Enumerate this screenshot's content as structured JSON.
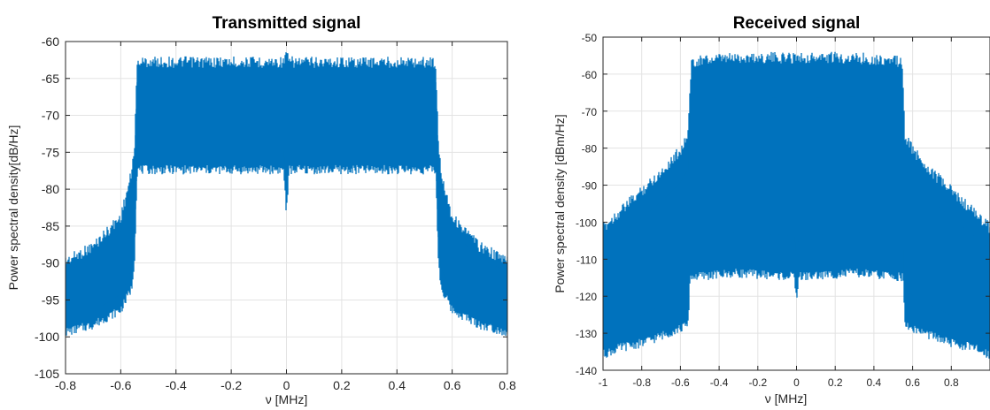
{
  "figure": {
    "panels": [
      {
        "id": "transmitted"
      },
      {
        "id": "received"
      }
    ]
  },
  "chart_data": [
    {
      "type": "area",
      "title": "Transmitted signal",
      "xlabel": "ν [MHz]",
      "ylabel": "Power spectral density[dB/Hz]",
      "xlim": [
        -0.8,
        0.8
      ],
      "ylim": [
        -105,
        -60
      ],
      "xticks": [
        -0.8,
        -0.6,
        -0.4,
        -0.2,
        0,
        0.2,
        0.4,
        0.6,
        0.8
      ],
      "xtick_labels": [
        "-0.8",
        "-0.6",
        "-0.4",
        "-0.2",
        "0",
        "0.2",
        "0.4",
        "0.6",
        "0.8"
      ],
      "yticks": [
        -105,
        -100,
        -95,
        -90,
        -85,
        -80,
        -75,
        -70,
        -65,
        -60
      ],
      "ytick_labels": [
        "-105",
        "-100",
        "-95",
        "-90",
        "-85",
        "-80",
        "-75",
        "-70",
        "-65",
        "-60"
      ],
      "grid": true,
      "color": "#0072BD",
      "series": [
        {
          "x": [
            -0.8,
            -0.7,
            -0.6,
            -0.56,
            -0.55,
            -0.54,
            -0.4,
            -0.2,
            -0.01,
            0,
            0.01,
            0.2,
            0.4,
            0.54,
            0.55,
            0.56,
            0.6,
            0.7,
            0.8
          ],
          "upper": [
            -89,
            -87,
            -83,
            -77,
            -73,
            -62,
            -62,
            -62,
            -62,
            -61,
            -62,
            -62,
            -62,
            -62,
            -73,
            -77,
            -83,
            -87,
            -89
          ],
          "lower": [
            -100,
            -99,
            -97,
            -94,
            -90,
            -78,
            -78,
            -78,
            -78,
            -84,
            -78,
            -78,
            -78,
            -78,
            -90,
            -94,
            -97,
            -99,
            -100
          ]
        }
      ]
    },
    {
      "type": "area",
      "title": "Received signal",
      "xlabel": "ν [MHz]",
      "ylabel": "Power spectral density [dBm/Hz]",
      "xlim": [
        -1,
        1
      ],
      "ylim": [
        -140,
        -50
      ],
      "xticks": [
        -1,
        -0.8,
        -0.6,
        -0.4,
        -0.2,
        0,
        0.2,
        0.4,
        0.6,
        0.8
      ],
      "xtick_labels": [
        "-1",
        "-0.8",
        "-0.6",
        "-0.4",
        "-0.2",
        "0",
        "0.2",
        "0.4",
        "0.6",
        "0.8"
      ],
      "yticks": [
        -140,
        -130,
        -120,
        -110,
        -100,
        -90,
        -80,
        -70,
        -60,
        -50
      ],
      "ytick_labels": [
        "-140",
        "-130",
        "-120",
        "-110",
        "-100",
        "-90",
        "-80",
        "-70",
        "-60",
        "-50"
      ],
      "grid": true,
      "color": "#0072BD",
      "series": [
        {
          "x": [
            -1,
            -0.9,
            -0.8,
            -0.7,
            -0.6,
            -0.56,
            -0.55,
            -0.54,
            -0.3,
            -0.01,
            0,
            0.01,
            0.3,
            0.54,
            0.55,
            0.56,
            0.6,
            0.7,
            0.8,
            0.9,
            1
          ],
          "upper": [
            -100,
            -95,
            -90,
            -85,
            -79,
            -75,
            -60,
            -55,
            -54,
            -54,
            -53,
            -54,
            -54,
            -55,
            -60,
            -75,
            -79,
            -85,
            -90,
            -95,
            -100
          ],
          "lower": [
            -137,
            -135,
            -134,
            -132,
            -130,
            -129,
            -116,
            -116,
            -115,
            -116,
            -123,
            -116,
            -115,
            -116,
            -116,
            -129,
            -130,
            -132,
            -134,
            -135,
            -137
          ]
        }
      ]
    }
  ]
}
